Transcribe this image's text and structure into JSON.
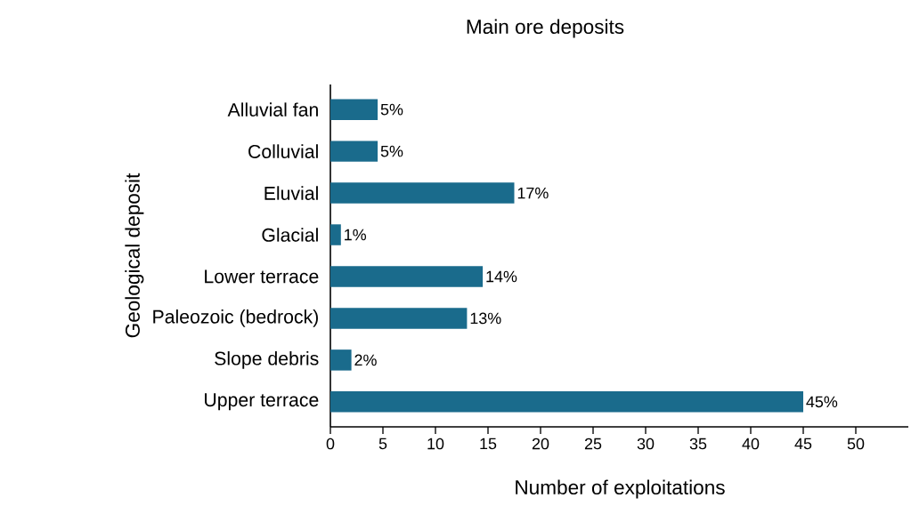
{
  "chart_data": {
    "type": "bar",
    "orientation": "horizontal",
    "title": "Main ore deposits",
    "xlabel": "Number of exploitations",
    "ylabel": "Geological deposit",
    "categories": [
      "Alluvial fan",
      "Colluvial",
      "Eluvial",
      "Glacial",
      "Lower terrace",
      "Paleozoic (bedrock)",
      "Slope debris",
      "Upper terrace"
    ],
    "values": [
      4.5,
      4.5,
      17.5,
      1,
      14.5,
      13,
      2,
      45
    ],
    "value_labels": [
      "5%",
      "5%",
      "17%",
      "1%",
      "14%",
      "13%",
      "2%",
      "45%"
    ],
    "color": "#1a6b8c",
    "xlim": [
      0,
      55
    ],
    "xticks": [
      0,
      5,
      10,
      15,
      20,
      25,
      30,
      35,
      40,
      45,
      50
    ]
  }
}
